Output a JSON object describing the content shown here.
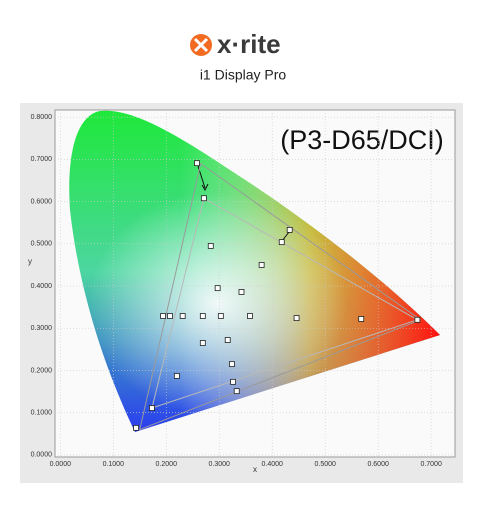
{
  "header": {
    "brand": "x·rite",
    "product": "i1 Display Pro"
  },
  "chart_data": {
    "type": "scatter",
    "annotation": "(P3-D65/DCI)",
    "xlabel": "x",
    "ylabel": "y",
    "xlim": [
      -0.01,
      0.745
    ],
    "ylim": [
      -0.005,
      0.817
    ],
    "xticks": [
      {
        "value": 0,
        "label": "0.0000"
      },
      {
        "value": 0.1,
        "label": "0.1000"
      },
      {
        "value": 0.2,
        "label": "0.2000"
      },
      {
        "value": 0.3,
        "label": "0.3000"
      },
      {
        "value": 0.4,
        "label": "0.4000"
      },
      {
        "value": 0.5,
        "label": "0.5000"
      },
      {
        "value": 0.6,
        "label": "0.6000"
      },
      {
        "value": 0.7,
        "label": "0.7000"
      }
    ],
    "yticks": [
      {
        "value": 0,
        "label": "0.0000"
      },
      {
        "value": 0.1,
        "label": "0.1000"
      },
      {
        "value": 0.2,
        "label": "0.2000"
      },
      {
        "value": 0.3,
        "label": "0.3000"
      },
      {
        "value": 0.4,
        "label": "0.4000"
      },
      {
        "value": 0.5,
        "label": "0.5000"
      },
      {
        "value": 0.6,
        "label": "0.6000"
      },
      {
        "value": 0.7,
        "label": "0.7000"
      },
      {
        "value": 0.8,
        "label": "0.8000"
      }
    ],
    "grid": true,
    "gamut_lines": [
      {
        "color": "#9a9a9a",
        "x": [
          0.68,
          0.265,
          0.15,
          0.68
        ],
        "y": [
          0.32,
          0.69,
          0.06,
          0.32
        ]
      },
      {
        "color": "#b8b8b8",
        "x": [
          0.674,
          0.271,
          0.173,
          0.674
        ],
        "y": [
          0.32,
          0.608,
          0.111,
          0.32
        ]
      }
    ],
    "series": [
      {
        "color": "#222222",
        "x": [
          0.258,
          0.271,
          0.433,
          0.418,
          0.284,
          0.38,
          0.297,
          0.342,
          0.194,
          0.207,
          0.231,
          0.269,
          0.303,
          0.358,
          0.446,
          0.568,
          0.674,
          0.316,
          0.269,
          0.324,
          0.22,
          0.326,
          0.333,
          0.173,
          0.143
        ],
        "y": [
          0.691,
          0.608,
          0.533,
          0.504,
          0.495,
          0.45,
          0.395,
          0.386,
          0.329,
          0.329,
          0.329,
          0.329,
          0.329,
          0.329,
          0.324,
          0.322,
          0.32,
          0.272,
          0.265,
          0.215,
          0.187,
          0.173,
          0.151,
          0.111,
          0.064
        ]
      }
    ]
  }
}
